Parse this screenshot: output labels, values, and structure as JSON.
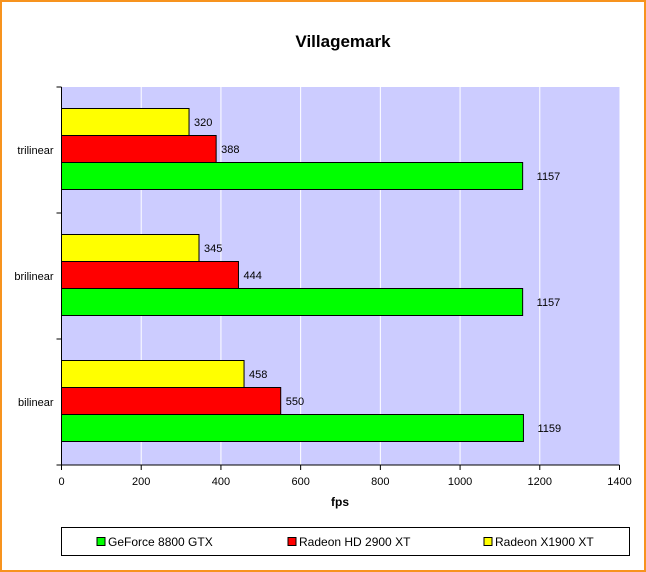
{
  "chart_data": {
    "type": "bar",
    "orientation": "horizontal",
    "title": "Villagemark",
    "xlabel": "fps",
    "ylabel": "",
    "xlim": [
      0,
      1400
    ],
    "xticks": [
      0,
      200,
      400,
      600,
      800,
      1000,
      1200,
      1400
    ],
    "grid": true,
    "legend_position": "bottom",
    "categories": [
      "trilinear",
      "brilinear",
      "bilinear"
    ],
    "series": [
      {
        "name": "GeForce 8800 GTX",
        "color": "#00ff00",
        "values": [
          1157,
          1157,
          1159
        ]
      },
      {
        "name": "Radeon HD 2900 XT",
        "color": "#ff0000",
        "values": [
          388,
          444,
          550
        ]
      },
      {
        "name": "Radeon X1900 XT",
        "color": "#ffff00",
        "values": [
          320,
          345,
          458
        ]
      }
    ],
    "plot_background": "#ccccff",
    "border_color": "#f7931e"
  }
}
